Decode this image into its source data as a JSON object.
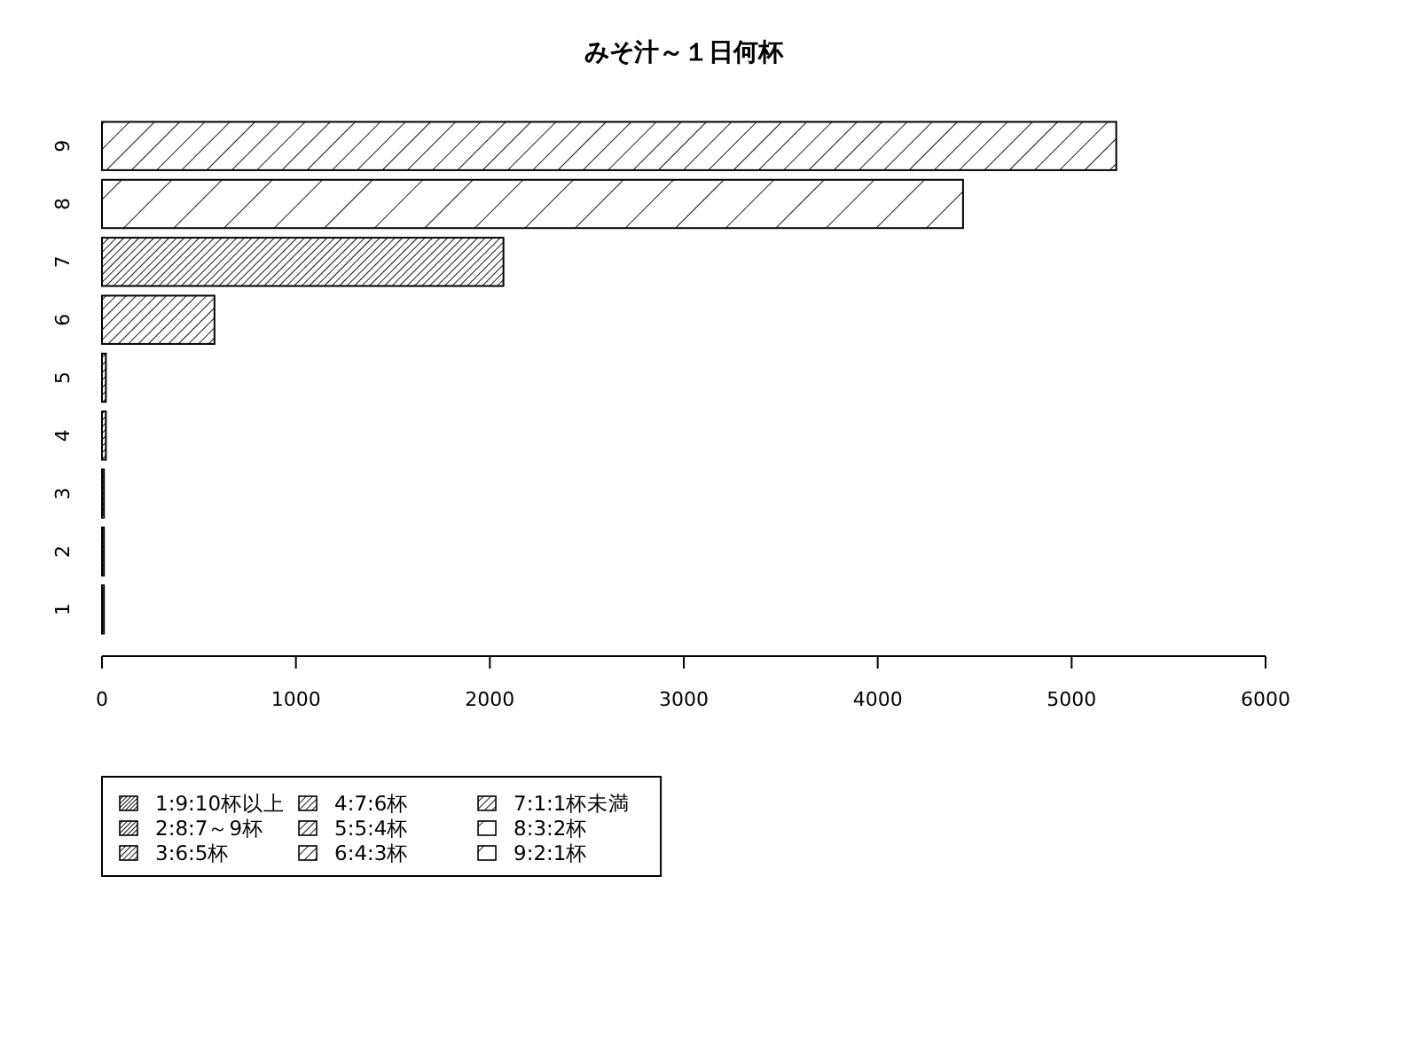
{
  "chart_data": {
    "type": "bar",
    "title": "みそ汁～１日何杯",
    "orientation": "horizontal",
    "stacked": true,
    "categories": [
      "9",
      "8",
      "7",
      "6",
      "5",
      "4",
      "3",
      "2",
      "1"
    ],
    "series": [
      {
        "name": "1:9:10杯以上",
        "color": "#000000",
        "values": [
          null,
          null,
          null,
          null,
          null,
          null,
          null,
          null,
          10
        ]
      },
      {
        "name": "2:8:7～9杯",
        "color": "#000000",
        "values": [
          null,
          null,
          null,
          null,
          null,
          null,
          null,
          10,
          null
        ]
      },
      {
        "name": "3:6:5杯",
        "color": "#000000",
        "values": [
          null,
          null,
          null,
          null,
          null,
          null,
          10,
          null,
          null
        ]
      },
      {
        "name": "4:7:6杯",
        "color": "#000000",
        "values": [
          null,
          null,
          null,
          null,
          null,
          20,
          null,
          null,
          null
        ]
      },
      {
        "name": "5:5:4杯",
        "color": "#000000",
        "values": [
          null,
          null,
          null,
          null,
          20,
          null,
          null,
          null,
          null
        ]
      },
      {
        "name": "6:4:3杯",
        "color": "#000000",
        "values": [
          null,
          null,
          null,
          580,
          null,
          null,
          null,
          null,
          null
        ]
      },
      {
        "name": "7:1:1杯未満",
        "color": "#000000",
        "values": [
          null,
          null,
          2070,
          null,
          null,
          null,
          null,
          null,
          null
        ]
      },
      {
        "name": "8:3:2杯",
        "color": "#000000",
        "values": [
          null,
          4440,
          null,
          null,
          null,
          null,
          null,
          null,
          null
        ]
      },
      {
        "name": "9:2:1杯",
        "color": "#000000",
        "values": [
          5230,
          null,
          null,
          null,
          null,
          null,
          null,
          null,
          null
        ]
      }
    ],
    "xlim": [
      0,
      6000
    ],
    "xticks": [
      0,
      1000,
      2000,
      3000,
      4000,
      5000,
      6000
    ],
    "legend": "bottom left"
  }
}
